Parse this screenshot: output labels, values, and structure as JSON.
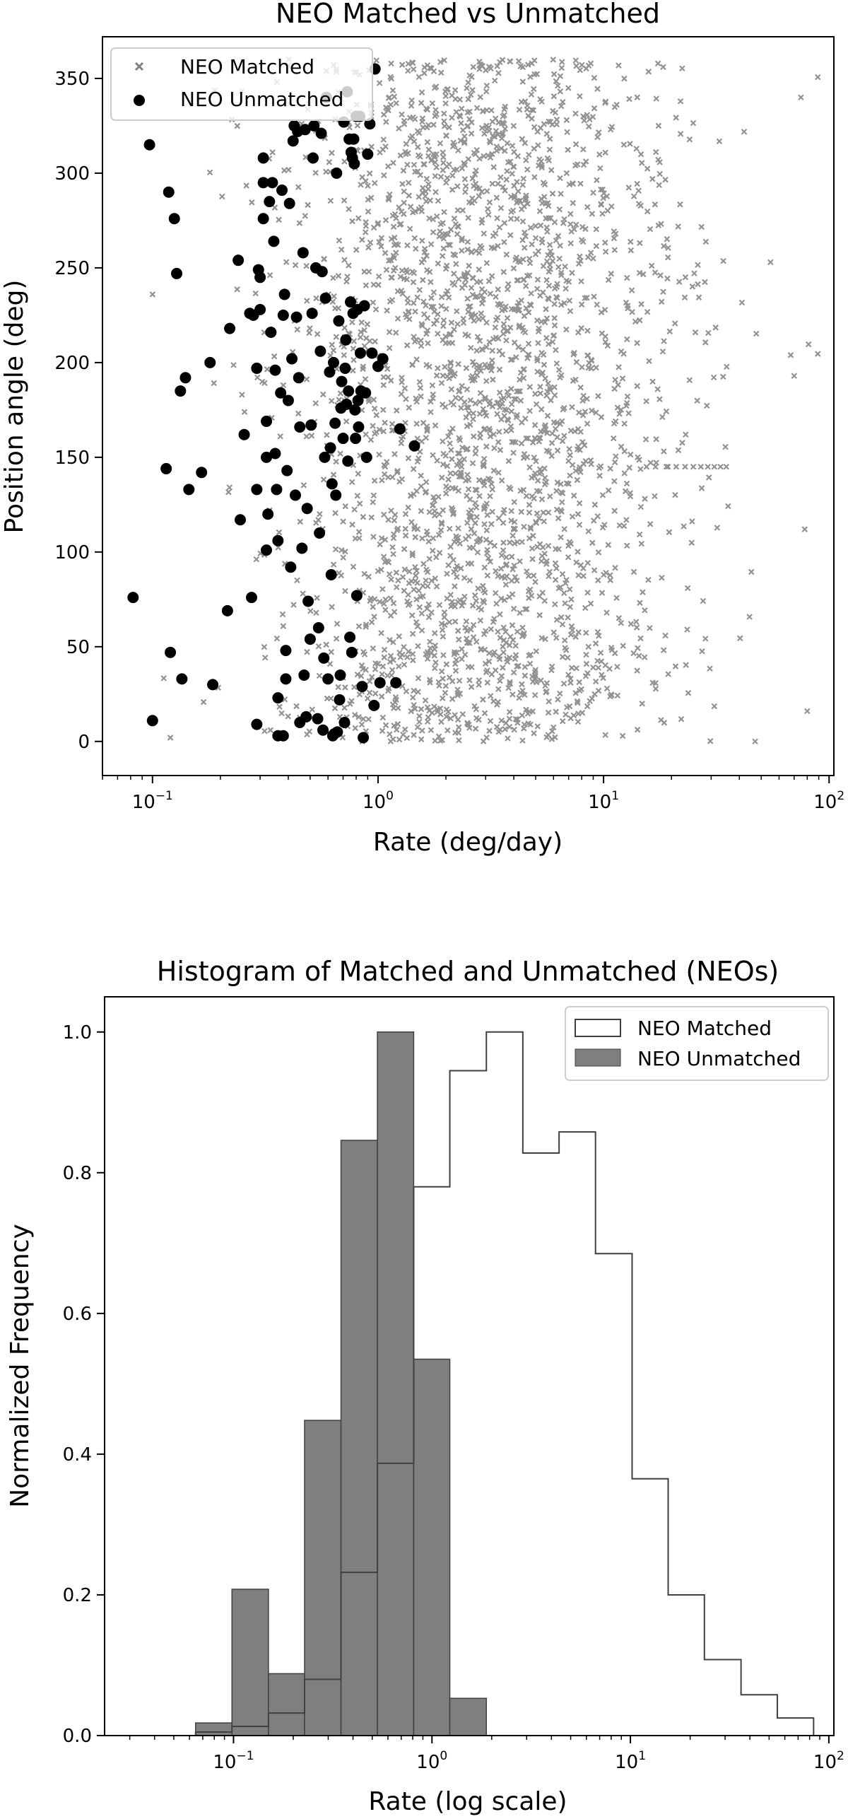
{
  "chart_data": [
    {
      "type": "scatter",
      "title": "NEO Matched vs Unmatched",
      "xlabel": "Rate (deg/day)",
      "ylabel": "Position angle (deg)",
      "xscale": "log",
      "xlim": [
        0.06,
        105
      ],
      "ylim": [
        -18,
        372
      ],
      "xticks": [
        {
          "value": 0.1,
          "base": "10",
          "exp": "−1"
        },
        {
          "value": 1,
          "base": "10",
          "exp": "0"
        },
        {
          "value": 10,
          "base": "10",
          "exp": "1"
        },
        {
          "value": 100,
          "base": "10",
          "exp": "2"
        }
      ],
      "yticks": [
        0,
        50,
        100,
        150,
        200,
        250,
        300,
        350
      ],
      "legend_position": "top-left",
      "series": [
        {
          "name": "NEO Matched",
          "marker": "x",
          "color": "#808080",
          "generated": {
            "count": 2600,
            "log10_center": 0.45,
            "log10_spread": 0.42,
            "log10_min": -0.95,
            "log10_max": 1.95,
            "y_min": 0,
            "y_max": 360,
            "seed": 7
          },
          "points": [
            {
              "x": 15.5,
              "y": 145
            },
            {
              "x": 17,
              "y": 145
            },
            {
              "x": 19,
              "y": 145
            },
            {
              "x": 21,
              "y": 145
            },
            {
              "x": 23,
              "y": 145
            },
            {
              "x": 25,
              "y": 145
            },
            {
              "x": 27,
              "y": 145
            },
            {
              "x": 29,
              "y": 145
            },
            {
              "x": 31,
              "y": 145
            },
            {
              "x": 33,
              "y": 145
            },
            {
              "x": 35,
              "y": 145
            },
            {
              "x": 47,
              "y": 0
            },
            {
              "x": 80,
              "y": 16
            },
            {
              "x": 78,
              "y": 112
            },
            {
              "x": 75,
              "y": 340
            },
            {
              "x": 55,
              "y": 253
            },
            {
              "x": 70,
              "y": 193
            },
            {
              "x": 0.12,
              "y": 2
            },
            {
              "x": 0.1,
              "y": 236
            }
          ]
        },
        {
          "name": "NEO Unmatched",
          "marker": "o",
          "color": "#000000",
          "points": [
            {
              "x": 0.082,
              "y": 76
            },
            {
              "x": 0.1,
              "y": 11
            },
            {
              "x": 0.097,
              "y": 315
            },
            {
              "x": 0.115,
              "y": 144
            },
            {
              "x": 0.118,
              "y": 290
            },
            {
              "x": 0.12,
              "y": 47
            },
            {
              "x": 0.125,
              "y": 276
            },
            {
              "x": 0.128,
              "y": 247
            },
            {
              "x": 0.133,
              "y": 185
            },
            {
              "x": 0.135,
              "y": 33
            },
            {
              "x": 0.14,
              "y": 192
            },
            {
              "x": 0.145,
              "y": 133
            },
            {
              "x": 0.165,
              "y": 142
            },
            {
              "x": 0.18,
              "y": 200
            },
            {
              "x": 0.185,
              "y": 30
            },
            {
              "x": 0.22,
              "y": 218
            },
            {
              "x": 0.215,
              "y": 69
            },
            {
              "x": 0.24,
              "y": 254
            },
            {
              "x": 0.245,
              "y": 117
            },
            {
              "x": 0.255,
              "y": 162
            },
            {
              "x": 0.27,
              "y": 226
            },
            {
              "x": 0.275,
              "y": 76
            },
            {
              "x": 0.28,
              "y": 225
            },
            {
              "x": 0.29,
              "y": 133
            },
            {
              "x": 0.29,
              "y": 197
            },
            {
              "x": 0.295,
              "y": 249
            },
            {
              "x": 0.3,
              "y": 245
            },
            {
              "x": 0.3,
              "y": 228
            },
            {
              "x": 0.29,
              "y": 9
            },
            {
              "x": 0.31,
              "y": 276
            },
            {
              "x": 0.31,
              "y": 295
            },
            {
              "x": 0.31,
              "y": 308
            },
            {
              "x": 0.32,
              "y": 101
            },
            {
              "x": 0.32,
              "y": 150
            },
            {
              "x": 0.32,
              "y": 169
            },
            {
              "x": 0.325,
              "y": 120
            },
            {
              "x": 0.33,
              "y": 285
            },
            {
              "x": 0.335,
              "y": 216
            },
            {
              "x": 0.34,
              "y": 295
            },
            {
              "x": 0.345,
              "y": 264
            },
            {
              "x": 0.35,
              "y": 152
            },
            {
              "x": 0.35,
              "y": 196
            },
            {
              "x": 0.355,
              "y": 133
            },
            {
              "x": 0.36,
              "y": 23
            },
            {
              "x": 0.36,
              "y": 106
            },
            {
              "x": 0.36,
              "y": 3
            },
            {
              "x": 0.37,
              "y": 184
            },
            {
              "x": 0.375,
              "y": 291
            },
            {
              "x": 0.38,
              "y": 3
            },
            {
              "x": 0.38,
              "y": 225
            },
            {
              "x": 0.385,
              "y": 236
            },
            {
              "x": 0.39,
              "y": 33
            },
            {
              "x": 0.39,
              "y": 48
            },
            {
              "x": 0.395,
              "y": 143
            },
            {
              "x": 0.4,
              "y": 180
            },
            {
              "x": 0.405,
              "y": 284
            },
            {
              "x": 0.41,
              "y": 92
            },
            {
              "x": 0.415,
              "y": 202
            },
            {
              "x": 0.42,
              "y": 317
            },
            {
              "x": 0.425,
              "y": 325
            },
            {
              "x": 0.43,
              "y": 130
            },
            {
              "x": 0.435,
              "y": 224
            },
            {
              "x": 0.44,
              "y": 322
            },
            {
              "x": 0.445,
              "y": 192
            },
            {
              "x": 0.45,
              "y": 10
            },
            {
              "x": 0.45,
              "y": 166
            },
            {
              "x": 0.46,
              "y": 102
            },
            {
              "x": 0.465,
              "y": 258
            },
            {
              "x": 0.47,
              "y": 35
            },
            {
              "x": 0.475,
              "y": 323
            },
            {
              "x": 0.48,
              "y": 13
            },
            {
              "x": 0.485,
              "y": 123
            },
            {
              "x": 0.49,
              "y": 74
            },
            {
              "x": 0.5,
              "y": 54
            },
            {
              "x": 0.505,
              "y": 167
            },
            {
              "x": 0.51,
              "y": 226
            },
            {
              "x": 0.515,
              "y": 308
            },
            {
              "x": 0.52,
              "y": 325
            },
            {
              "x": 0.53,
              "y": 250
            },
            {
              "x": 0.54,
              "y": 12
            },
            {
              "x": 0.545,
              "y": 60
            },
            {
              "x": 0.55,
              "y": 110
            },
            {
              "x": 0.555,
              "y": 206
            },
            {
              "x": 0.56,
              "y": 321
            },
            {
              "x": 0.565,
              "y": 248
            },
            {
              "x": 0.57,
              "y": 6
            },
            {
              "x": 0.575,
              "y": 44
            },
            {
              "x": 0.58,
              "y": 150
            },
            {
              "x": 0.585,
              "y": 234
            },
            {
              "x": 0.59,
              "y": 340
            },
            {
              "x": 0.6,
              "y": 33
            },
            {
              "x": 0.61,
              "y": 195
            },
            {
              "x": 0.615,
              "y": 155
            },
            {
              "x": 0.62,
              "y": 88
            },
            {
              "x": 0.625,
              "y": 136
            },
            {
              "x": 0.63,
              "y": 3
            },
            {
              "x": 0.635,
              "y": 200
            },
            {
              "x": 0.64,
              "y": 4
            },
            {
              "x": 0.645,
              "y": 168
            },
            {
              "x": 0.65,
              "y": 130
            },
            {
              "x": 0.655,
              "y": 300
            },
            {
              "x": 0.66,
              "y": 5
            },
            {
              "x": 0.67,
              "y": 222
            },
            {
              "x": 0.675,
              "y": 22
            },
            {
              "x": 0.68,
              "y": 35
            },
            {
              "x": 0.685,
              "y": 176
            },
            {
              "x": 0.69,
              "y": 190
            },
            {
              "x": 0.7,
              "y": 160
            },
            {
              "x": 0.705,
              "y": 327
            },
            {
              "x": 0.71,
              "y": 10
            },
            {
              "x": 0.715,
              "y": 197
            },
            {
              "x": 0.72,
              "y": 212
            },
            {
              "x": 0.725,
              "y": 178
            },
            {
              "x": 0.73,
              "y": 343
            },
            {
              "x": 0.735,
              "y": 148
            },
            {
              "x": 0.74,
              "y": 185
            },
            {
              "x": 0.745,
              "y": 318
            },
            {
              "x": 0.75,
              "y": 55
            },
            {
              "x": 0.755,
              "y": 232
            },
            {
              "x": 0.76,
              "y": 311
            },
            {
              "x": 0.765,
              "y": 47
            },
            {
              "x": 0.77,
              "y": 308
            },
            {
              "x": 0.775,
              "y": 226
            },
            {
              "x": 0.78,
              "y": 318
            },
            {
              "x": 0.785,
              "y": 305
            },
            {
              "x": 0.79,
              "y": 175
            },
            {
              "x": 0.795,
              "y": 160
            },
            {
              "x": 0.8,
              "y": 330
            },
            {
              "x": 0.805,
              "y": 77
            },
            {
              "x": 0.81,
              "y": 228
            },
            {
              "x": 0.815,
              "y": 180
            },
            {
              "x": 0.82,
              "y": 166
            },
            {
              "x": 0.83,
              "y": 330
            },
            {
              "x": 0.835,
              "y": 205
            },
            {
              "x": 0.84,
              "y": 185
            },
            {
              "x": 0.85,
              "y": 29
            },
            {
              "x": 0.86,
              "y": 2
            },
            {
              "x": 0.87,
              "y": 230
            },
            {
              "x": 0.88,
              "y": 184
            },
            {
              "x": 0.89,
              "y": 150
            },
            {
              "x": 0.9,
              "y": 310
            },
            {
              "x": 0.92,
              "y": 326
            },
            {
              "x": 0.94,
              "y": 205
            },
            {
              "x": 0.96,
              "y": 19
            },
            {
              "x": 0.97,
              "y": 355
            },
            {
              "x": 1.0,
              "y": 198
            },
            {
              "x": 1.02,
              "y": 31
            },
            {
              "x": 1.05,
              "y": 202
            },
            {
              "x": 1.2,
              "y": 31
            },
            {
              "x": 1.25,
              "y": 165
            },
            {
              "x": 1.45,
              "y": 156
            }
          ]
        }
      ]
    },
    {
      "type": "histogram",
      "title": "Histogram of Matched and Unmatched (NEOs)",
      "xlabel": "Rate (log scale)",
      "ylabel": "Normalized Frequency",
      "xscale": "log",
      "xlim": [
        0.0224,
        106
      ],
      "ylim": [
        0,
        1.05
      ],
      "xticks": [
        {
          "value": 0.1,
          "base": "10",
          "exp": "−1"
        },
        {
          "value": 1,
          "base": "10",
          "exp": "0"
        },
        {
          "value": 10,
          "base": "10",
          "exp": "1"
        },
        {
          "value": 100,
          "base": "10",
          "exp": "2"
        }
      ],
      "yticks": [
        "0.0",
        "0.2",
        "0.4",
        "0.6",
        "0.8",
        "1.0"
      ],
      "legend_position": "top-right",
      "bin_edges": [
        0.0277,
        0.0422,
        0.0644,
        0.0982,
        0.15,
        0.228,
        0.348,
        0.531,
        0.809,
        1.23,
        1.88,
        2.87,
        4.37,
        6.67,
        10.2,
        15.5,
        23.6,
        36.1,
        55.0,
        83.8
      ],
      "series": [
        {
          "name": "NEO Matched",
          "style": "step",
          "color": "#404040",
          "values": [
            0.0,
            0.0,
            0.005,
            0.013,
            0.032,
            0.08,
            0.232,
            0.387,
            0.78,
            0.945,
            1.0,
            0.828,
            0.858,
            0.685,
            0.365,
            0.2,
            0.108,
            0.058,
            0.025
          ]
        },
        {
          "name": "NEO Unmatched",
          "style": "filled",
          "color": "#7f7f7f",
          "values": [
            0.0,
            0.0,
            0.018,
            0.208,
            0.088,
            0.448,
            0.846,
            1.0,
            0.535,
            0.053,
            0.0,
            0.0,
            0.0,
            0.0,
            0.0,
            0.0,
            0.0,
            0.0,
            0.0
          ]
        }
      ]
    }
  ]
}
